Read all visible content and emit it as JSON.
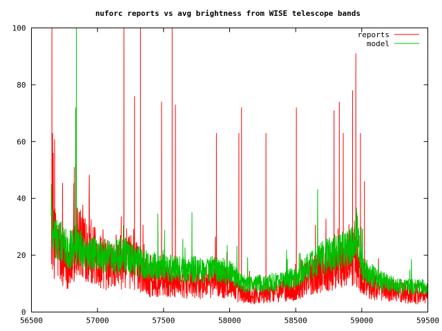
{
  "chart_data": {
    "type": "line",
    "title": "nuforc reports vs avg brightness from WISE telescope bands",
    "xlabel": "",
    "ylabel": "",
    "xlim": [
      56500,
      59500
    ],
    "ylim": [
      0,
      100
    ],
    "x_ticks": [
      56500,
      57000,
      57500,
      58000,
      58500,
      59000,
      59500
    ],
    "y_ticks": [
      0,
      20,
      40,
      60,
      80,
      100
    ],
    "x_tick_labels": [
      "56500",
      "57000",
      "57500",
      "58000",
      "58500",
      "59000",
      "59500"
    ],
    "y_tick_labels": [
      "0",
      "20",
      "40",
      "60",
      "80",
      "100"
    ],
    "grid": false,
    "legend_position": "top-right",
    "legend": [
      {
        "name": "reports",
        "color": "#ff0000"
      },
      {
        "name": "model",
        "color": "#00c000"
      }
    ],
    "x_range": [
      56650,
      59500
    ],
    "series": [
      {
        "name": "reports",
        "color": "#ff0000",
        "baseline": [
          [
            56650,
            30
          ],
          [
            56680,
            24
          ],
          [
            56720,
            20
          ],
          [
            56800,
            17
          ],
          [
            56850,
            26
          ],
          [
            56900,
            24
          ],
          [
            56950,
            22
          ],
          [
            57000,
            18
          ],
          [
            57100,
            16
          ],
          [
            57200,
            18
          ],
          [
            57300,
            16
          ],
          [
            57400,
            11
          ],
          [
            57500,
            12
          ],
          [
            57600,
            11
          ],
          [
            57700,
            10
          ],
          [
            57800,
            10
          ],
          [
            57900,
            11
          ],
          [
            58000,
            10
          ],
          [
            58100,
            6
          ],
          [
            58200,
            6
          ],
          [
            58300,
            7
          ],
          [
            58400,
            8
          ],
          [
            58500,
            8
          ],
          [
            58600,
            12
          ],
          [
            58700,
            15
          ],
          [
            58800,
            16
          ],
          [
            58900,
            18
          ],
          [
            58950,
            20
          ],
          [
            59000,
            12
          ],
          [
            59100,
            9
          ],
          [
            59200,
            8
          ],
          [
            59300,
            7
          ],
          [
            59400,
            6
          ],
          [
            59500,
            6
          ]
        ],
        "spikes": [
          [
            56655,
            100
          ],
          [
            56660,
            63
          ],
          [
            56665,
            56
          ],
          [
            56825,
            51
          ],
          [
            56835,
            52
          ],
          [
            56840,
            69
          ],
          [
            57200,
            100
          ],
          [
            57280,
            76
          ],
          [
            57325,
            100
          ],
          [
            57485,
            74
          ],
          [
            57565,
            100
          ],
          [
            57590,
            73
          ],
          [
            57900,
            63
          ],
          [
            58070,
            63
          ],
          [
            58090,
            72
          ],
          [
            58275,
            63
          ],
          [
            58505,
            72
          ],
          [
            58790,
            71
          ],
          [
            58830,
            74
          ],
          [
            58860,
            63
          ],
          [
            58930,
            78
          ],
          [
            58955,
            91
          ],
          [
            58990,
            63
          ],
          [
            59020,
            46
          ]
        ]
      },
      {
        "name": "model",
        "color": "#00c000",
        "baseline": [
          [
            56650,
            34
          ],
          [
            56670,
            28
          ],
          [
            56700,
            25
          ],
          [
            56800,
            22
          ],
          [
            56850,
            24
          ],
          [
            56900,
            21
          ],
          [
            57000,
            20
          ],
          [
            57100,
            19
          ],
          [
            57200,
            20
          ],
          [
            57300,
            18
          ],
          [
            57400,
            16
          ],
          [
            57500,
            16
          ],
          [
            57600,
            15
          ],
          [
            57700,
            15
          ],
          [
            57800,
            15
          ],
          [
            57900,
            15
          ],
          [
            58000,
            14
          ],
          [
            58050,
            12
          ],
          [
            58100,
            10
          ],
          [
            58200,
            10
          ],
          [
            58300,
            10
          ],
          [
            58400,
            11
          ],
          [
            58500,
            12
          ],
          [
            58600,
            16
          ],
          [
            58700,
            19
          ],
          [
            58800,
            21
          ],
          [
            58900,
            22
          ],
          [
            58960,
            28
          ],
          [
            59000,
            16
          ],
          [
            59100,
            12
          ],
          [
            59200,
            10
          ],
          [
            59300,
            9
          ],
          [
            59400,
            9
          ],
          [
            59500,
            9
          ]
        ],
        "spikes": [
          [
            56650,
            45
          ],
          [
            56840,
            100
          ],
          [
            56835,
            72
          ]
        ]
      }
    ]
  }
}
